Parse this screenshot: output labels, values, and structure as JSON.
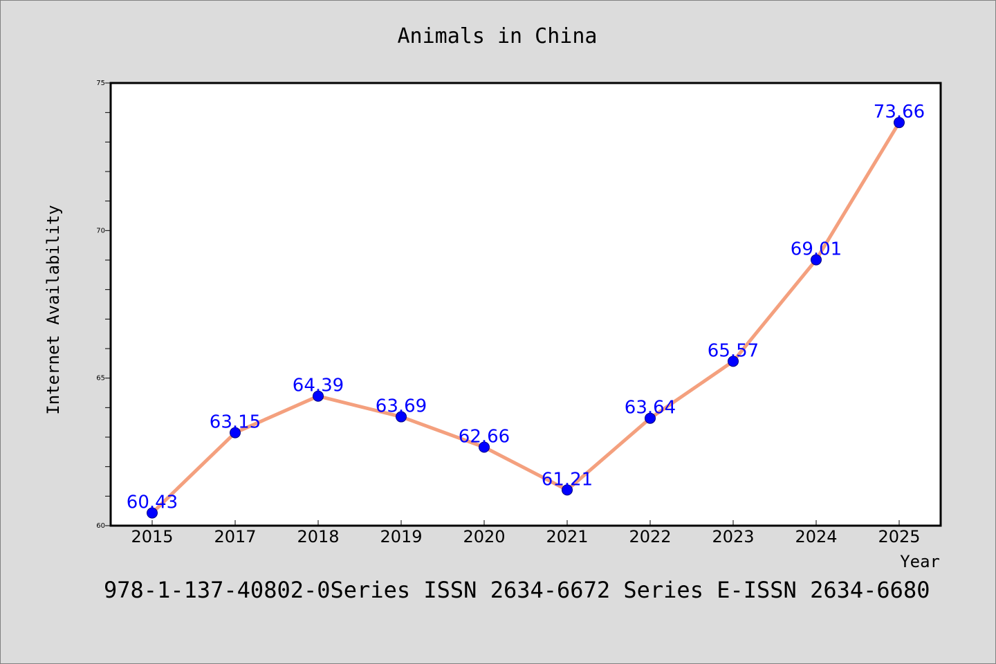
{
  "chart_data": {
    "type": "line",
    "title": "Animals in China",
    "xlabel": "Year",
    "ylabel": "Internet Availability",
    "categories": [
      "2015",
      "2017",
      "2018",
      "2019",
      "2020",
      "2021",
      "2022",
      "2023",
      "2024",
      "2025"
    ],
    "series": [
      {
        "values": [
          60.43,
          63.15,
          64.39,
          63.69,
          62.66,
          61.21,
          63.64,
          65.57,
          69.01,
          73.66
        ]
      }
    ],
    "data_labels": [
      "60.43",
      "63.15",
      "64.39",
      "63.69",
      "62.66",
      "61.21",
      "63.64",
      "65.57",
      "69.01",
      "73.66"
    ],
    "ylim": [
      60,
      75
    ],
    "yticks": [
      60,
      65,
      70,
      75
    ],
    "y_minor_step": 1,
    "grid": false,
    "legend": false,
    "colors": {
      "line": "#f4a07e",
      "marker": "#0000ff",
      "label": "#0000ff",
      "background": "#dcdcdc",
      "plot_background": "#ffffff"
    }
  },
  "footer": "978-1-137-40802-0Series ISSN 2634-6672 Series E-ISSN 2634-6680"
}
